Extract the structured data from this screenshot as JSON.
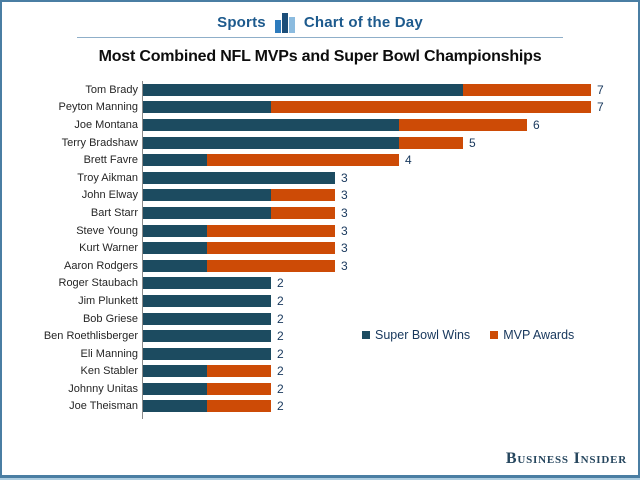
{
  "header": {
    "section_label": "Sports",
    "feature_label": "Chart of the Day",
    "icon": "bar-chart-icon"
  },
  "title": "Most Combined NFL MVPs and Super Bowl Championships",
  "legend": {
    "items": [
      {
        "label": "Super Bowl Wins",
        "color": "#1c4b60"
      },
      {
        "label": "MVP Awards",
        "color": "#cd4b06"
      }
    ]
  },
  "footer": {
    "brand": "Business Insider"
  },
  "colors": {
    "super_bowl_wins": "#1c4b60",
    "mvp_awards": "#cd4b06",
    "frame_border": "#4a7ea3",
    "header_text": "#1d5a8d",
    "value_text": "#17375c"
  },
  "chart_data": {
    "type": "bar",
    "orientation": "horizontal",
    "stacked": true,
    "grid": false,
    "legend_position": "inside-right",
    "xlim": [
      0,
      7
    ],
    "categories": [
      "Tom Brady",
      "Peyton Manning",
      "Joe Montana",
      "Terry Bradshaw",
      "Brett Favre",
      "Troy Aikman",
      "John Elway",
      "Bart Starr",
      "Steve Young",
      "Kurt Warner",
      "Aaron Rodgers",
      "Roger Staubach",
      "Jim Plunkett",
      "Bob Griese",
      "Ben Roethlisberger",
      "Eli Manning",
      "Ken Stabler",
      "Johnny Unitas",
      "Joe Theisman"
    ],
    "series": [
      {
        "name": "Super Bowl Wins",
        "color": "#1c4b60",
        "values": [
          5,
          2,
          4,
          4,
          1,
          3,
          2,
          2,
          1,
          1,
          1,
          2,
          2,
          2,
          2,
          2,
          1,
          1,
          1
        ]
      },
      {
        "name": "MVP Awards",
        "color": "#cd4b06",
        "values": [
          2,
          5,
          2,
          1,
          3,
          0,
          1,
          1,
          2,
          2,
          2,
          0,
          0,
          0,
          0,
          0,
          1,
          1,
          1
        ]
      }
    ],
    "totals": [
      7,
      7,
      6,
      5,
      4,
      3,
      3,
      3,
      3,
      3,
      3,
      2,
      2,
      2,
      2,
      2,
      2,
      2,
      2
    ]
  }
}
